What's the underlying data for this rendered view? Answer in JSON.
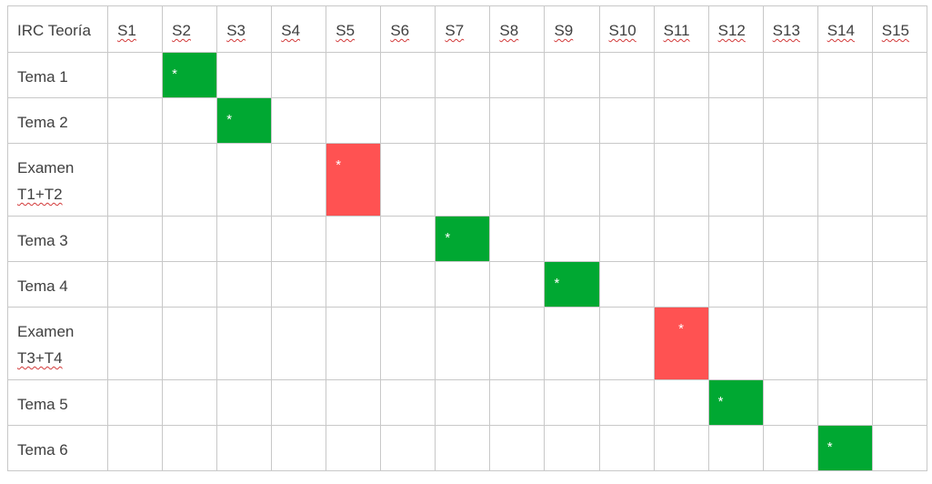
{
  "table": {
    "corner_label": "IRC Teoría",
    "weeks": [
      "S1",
      "S2",
      "S3",
      "S4",
      "S5",
      "S6",
      "S7",
      "S8",
      "S9",
      "S10",
      "S11",
      "S12",
      "S13",
      "S14",
      "S15"
    ],
    "rows": [
      {
        "label": "Tema 1",
        "label_line2": "",
        "week": 2,
        "type": "tema",
        "marker": "*"
      },
      {
        "label": "Tema 2",
        "label_line2": "",
        "week": 3,
        "type": "tema",
        "marker": "*"
      },
      {
        "label": "Examen",
        "label_line2": "T1+T2",
        "week": 5,
        "type": "examen",
        "marker": "*"
      },
      {
        "label": "Tema 3",
        "label_line2": "",
        "week": 7,
        "type": "tema",
        "marker": "*"
      },
      {
        "label": "Tema 4",
        "label_line2": "",
        "week": 9,
        "type": "tema",
        "marker": "*"
      },
      {
        "label": "Examen",
        "label_line2": "T3+T4",
        "week": 11,
        "type": "examen",
        "marker": "*"
      },
      {
        "label": "Tema 5",
        "label_line2": "",
        "week": 12,
        "type": "tema",
        "marker": "*"
      },
      {
        "label": "Tema 6",
        "label_line2": "",
        "week": 14,
        "type": "tema",
        "marker": "*"
      }
    ]
  },
  "colors": {
    "tema": "#00a832",
    "examen": "#ff5252",
    "grid": "#c8c8c8",
    "text": "#404040"
  }
}
